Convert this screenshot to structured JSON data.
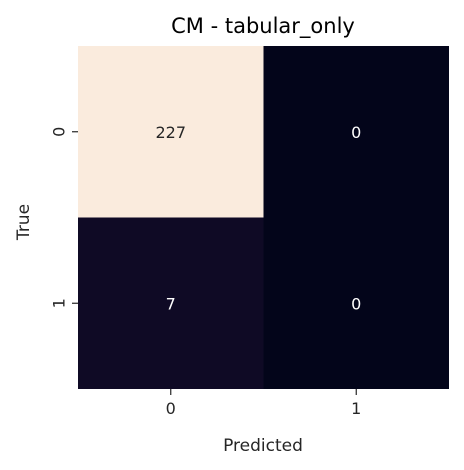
{
  "chart_data": {
    "type": "heatmap",
    "title": "CM - tabular_only",
    "xlabel": "Predicted",
    "ylabel": "True",
    "x_categories": [
      "0",
      "1"
    ],
    "y_categories": [
      "0",
      "1"
    ],
    "values": [
      [
        227,
        0
      ],
      [
        7,
        0
      ]
    ],
    "colorbar": false,
    "colormap": "rocket",
    "grid": false
  }
}
